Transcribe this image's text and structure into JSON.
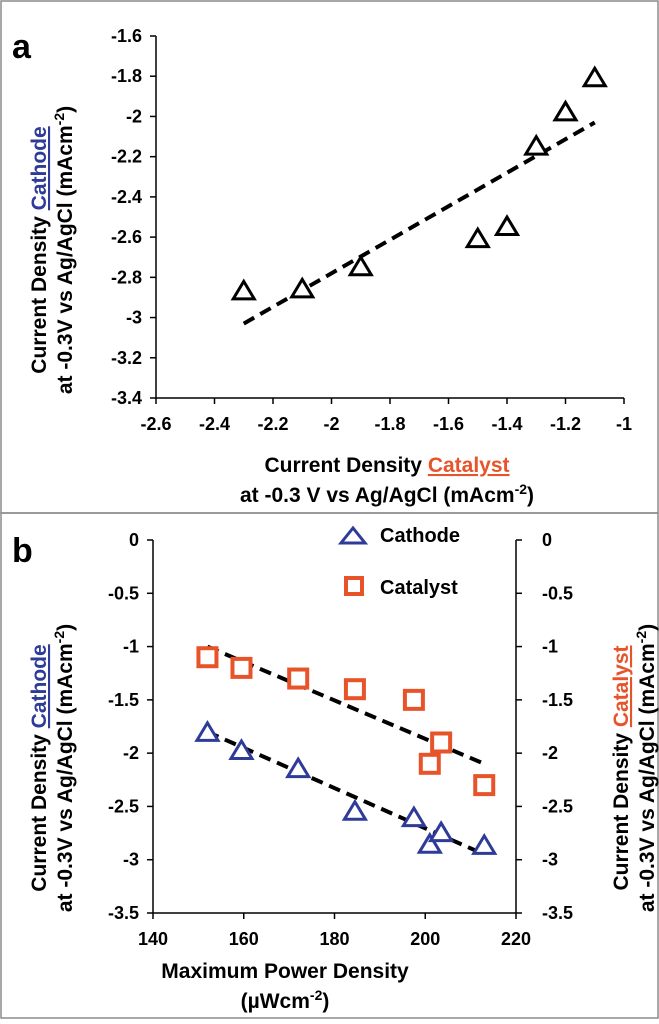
{
  "chart_data": [
    {
      "panel": "a",
      "type": "scatter",
      "xlabel_line1_prefix": "Current Density ",
      "xlabel_line1_highlight": "Catalyst",
      "xlabel_line2": "at -0.3 V vs Ag/AgCl (mAcm",
      "xlabel_line2_sup": "-2",
      "xlabel_line2_suffix": ")",
      "ylabel_line1_prefix": "Current Density ",
      "ylabel_line1_highlight": "Cathode",
      "ylabel_line2": "at -0.3V vs Ag/AgCl (mAcm",
      "ylabel_line2_sup": "-2",
      "ylabel_line2_suffix": ")",
      "xlim": [
        -2.6,
        -1
      ],
      "ylim": [
        -3.4,
        -1.6
      ],
      "xticks": [
        "-2.6",
        "-2.4",
        "-2.2",
        "-2",
        "-1.8",
        "-1.6",
        "-1.4",
        "-1.2",
        "-1"
      ],
      "yticks": [
        "-1.6",
        "-1.8",
        "-2",
        "-2.2",
        "-2.4",
        "-2.6",
        "-2.8",
        "-3",
        "-3.2",
        "-3.4"
      ],
      "points": [
        {
          "x": -2.3,
          "y": -2.87
        },
        {
          "x": -2.1,
          "y": -2.86
        },
        {
          "x": -1.9,
          "y": -2.75
        },
        {
          "x": -1.5,
          "y": -2.61
        },
        {
          "x": -1.4,
          "y": -2.55
        },
        {
          "x": -1.3,
          "y": -2.15
        },
        {
          "x": -1.2,
          "y": -1.98
        },
        {
          "x": -1.1,
          "y": -1.81
        }
      ],
      "trendline": {
        "x1": -2.3,
        "y1": -3.03,
        "x2": -1.1,
        "y2": -2.03
      },
      "marker_color": "#000000"
    },
    {
      "panel": "b",
      "type": "scatter",
      "xlabel_line1": "Maximum Power Density",
      "xlabel_line2_prefix": "(µWcm",
      "xlabel_line2_sup": "-2",
      "xlabel_line2_suffix": ")",
      "ylabel_left_line1_prefix": "Current Density ",
      "ylabel_left_line1_highlight": "Cathode",
      "ylabel_left_line2": "at -0.3V vs Ag/AgCl (mAcm",
      "ylabel_left_line2_sup": "-2",
      "ylabel_left_line2_suffix": ")",
      "ylabel_right_line1_prefix": "Current Density ",
      "ylabel_right_line1_highlight": "Catalyst",
      "ylabel_right_line2": "at -0.3V vs Ag/AgCl (mAcm",
      "ylabel_right_line2_sup": "-2",
      "ylabel_right_line2_suffix": ")",
      "xlim": [
        140,
        220
      ],
      "ylim": [
        -3.5,
        0
      ],
      "xticks": [
        "140",
        "160",
        "180",
        "200",
        "220"
      ],
      "yticks": [
        "0",
        "-0.5",
        "-1",
        "-1.5",
        "-2",
        "-2.5",
        "-3",
        "-3.5"
      ],
      "series": [
        {
          "name": "Cathode",
          "marker": "triangle",
          "color": "#2e3b98",
          "points": [
            {
              "x": 152,
              "y": -1.81
            },
            {
              "x": 159.5,
              "y": -1.98
            },
            {
              "x": 172,
              "y": -2.15
            },
            {
              "x": 184.5,
              "y": -2.55
            },
            {
              "x": 197.5,
              "y": -2.61
            },
            {
              "x": 201,
              "y": -2.86
            },
            {
              "x": 203.5,
              "y": -2.75
            },
            {
              "x": 213,
              "y": -2.87
            }
          ],
          "trendline": {
            "x1": 152,
            "y1": -1.8,
            "x2": 213,
            "y2": -2.95
          }
        },
        {
          "name": "Catalyst",
          "marker": "square",
          "color": "#e8542a",
          "points": [
            {
              "x": 152,
              "y": -1.1
            },
            {
              "x": 159.5,
              "y": -1.2
            },
            {
              "x": 172,
              "y": -1.3
            },
            {
              "x": 184.5,
              "y": -1.4
            },
            {
              "x": 197.5,
              "y": -1.5
            },
            {
              "x": 201,
              "y": -2.1
            },
            {
              "x": 203.5,
              "y": -1.9
            },
            {
              "x": 213,
              "y": -2.3
            }
          ],
          "trendline": {
            "x1": 152,
            "y1": -1.0,
            "x2": 213,
            "y2": -2.1
          }
        }
      ],
      "legend_placement": "top-center"
    }
  ],
  "colors": {
    "cathode_label": "#2e3b98",
    "catalyst_label": "#e8542a",
    "frame": "#8c8c8c"
  }
}
